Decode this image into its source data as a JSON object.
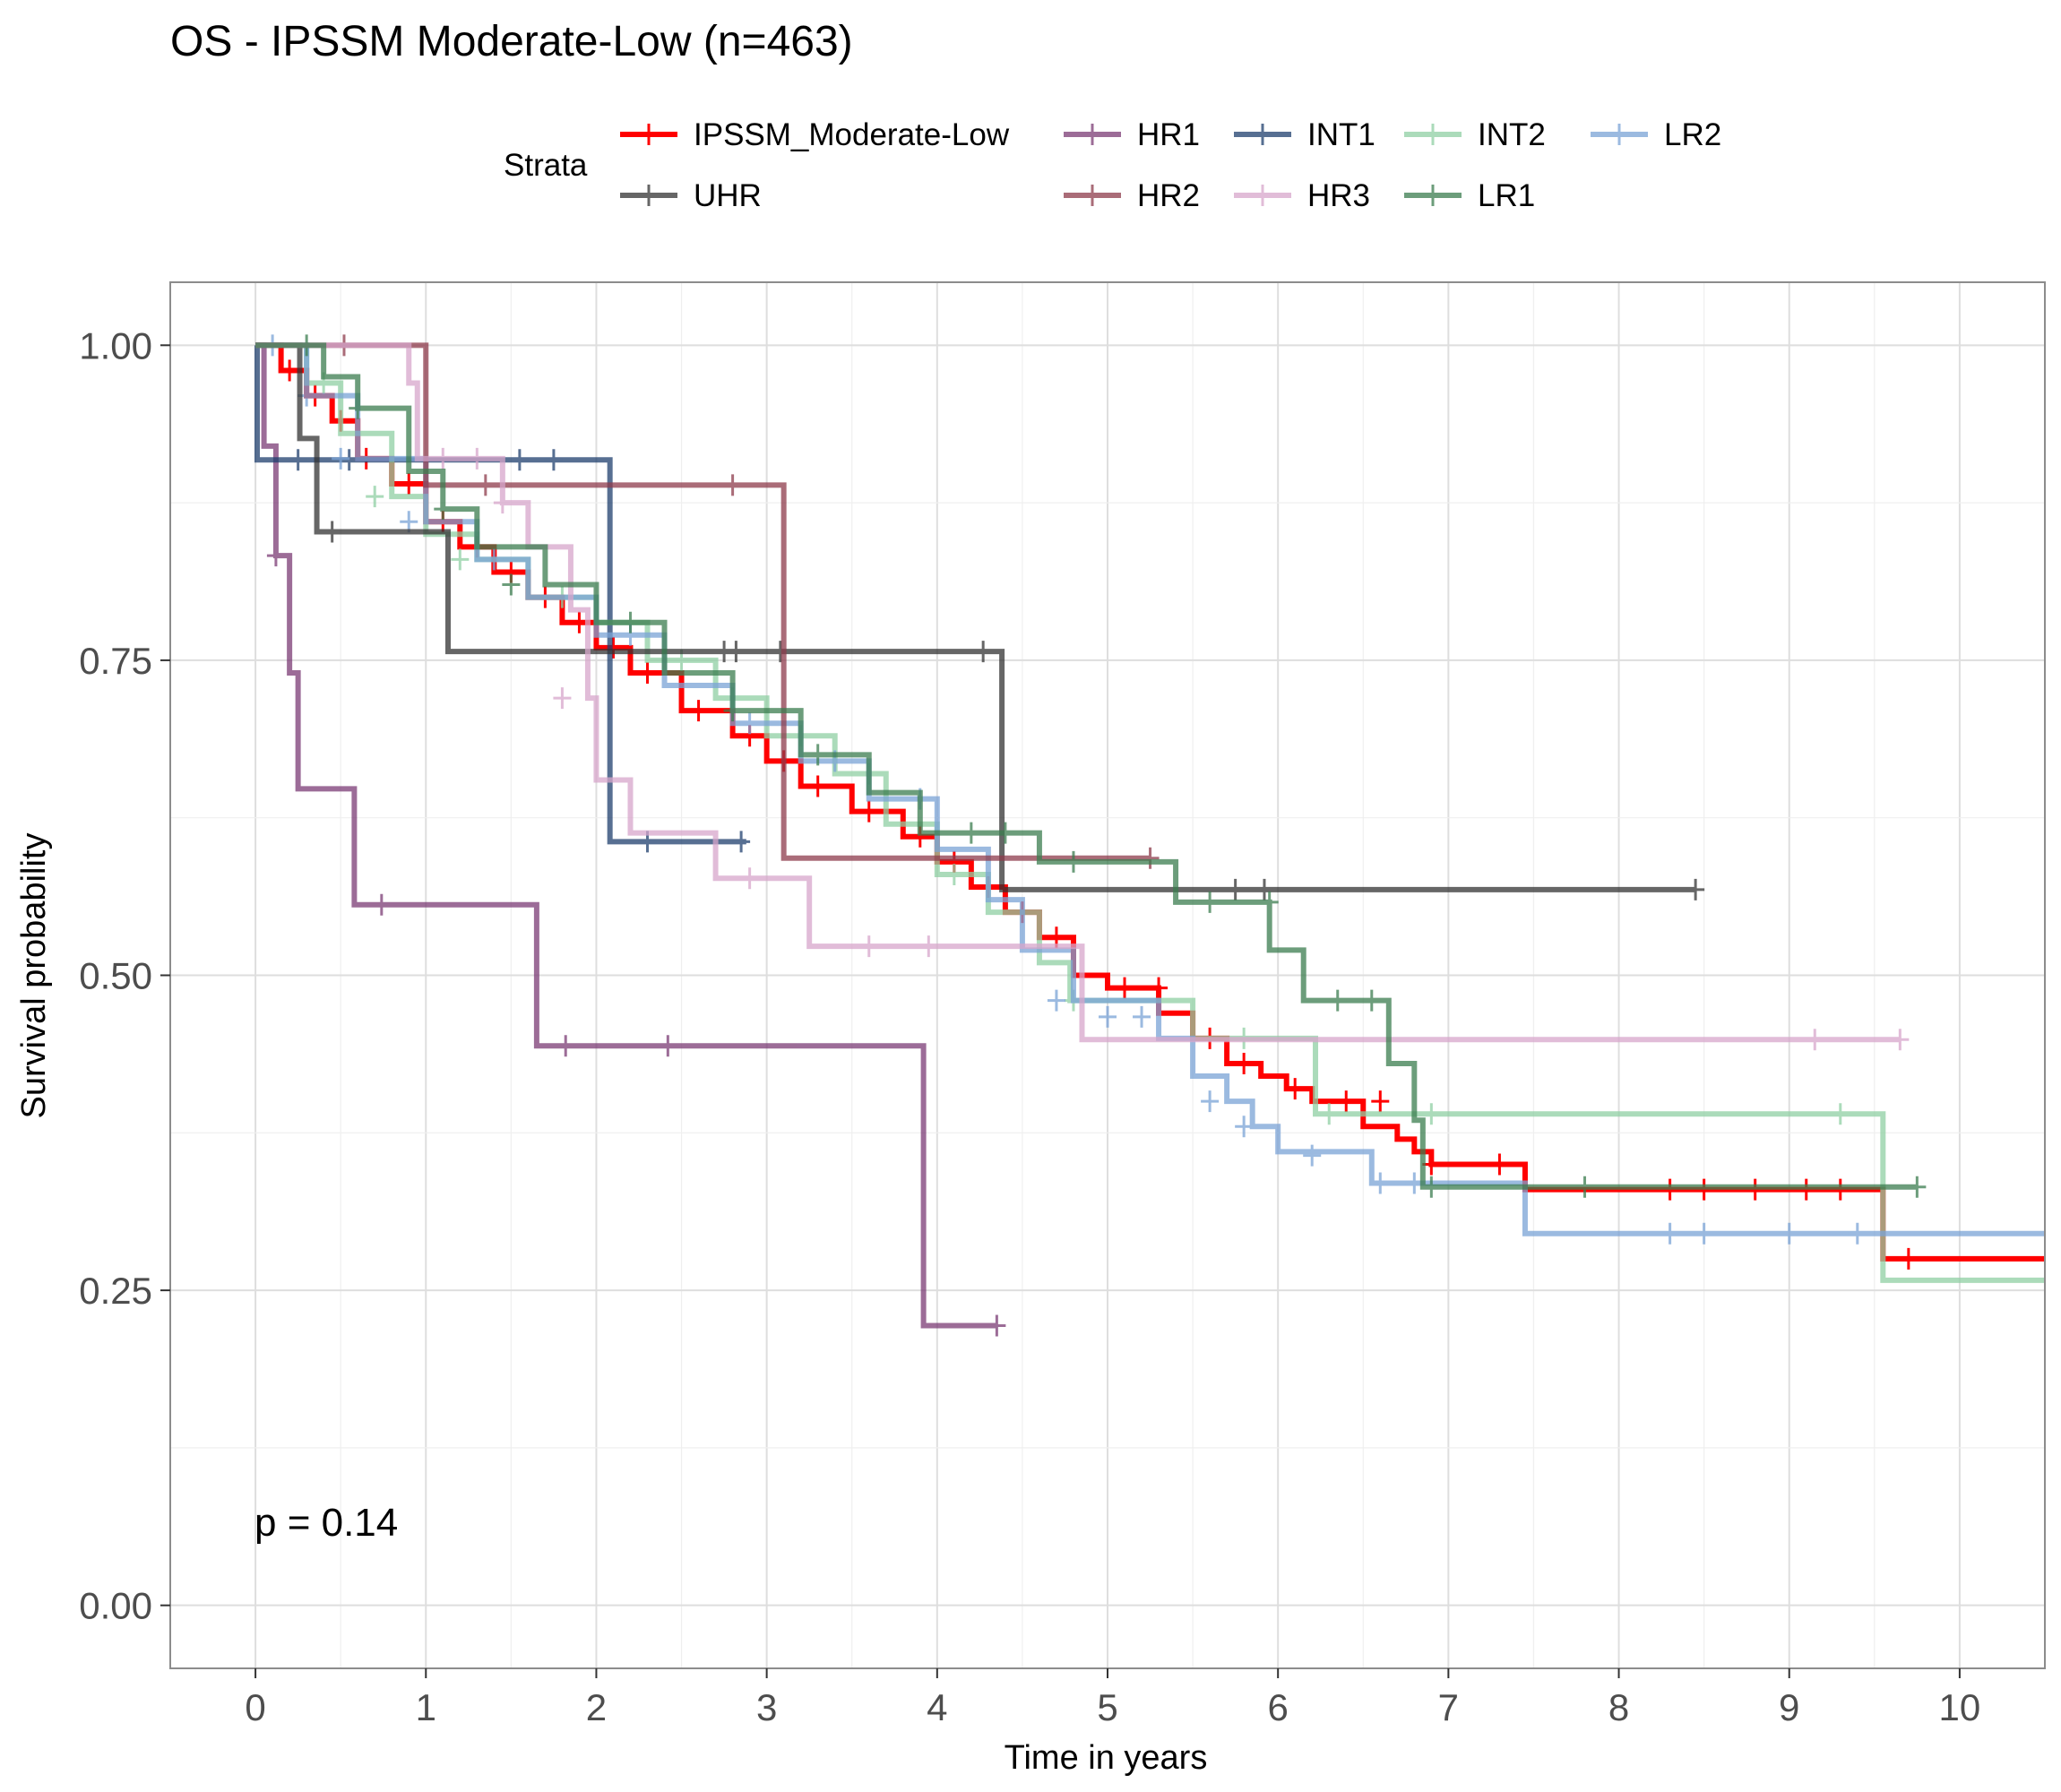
{
  "chart_data": {
    "type": "line",
    "title": "OS - IPSSM Moderate-Low (n=463)",
    "xlabel": "Time in years",
    "ylabel": "Survival probability",
    "xlim": [
      -0.5,
      10.5
    ],
    "ylim": [
      -0.05,
      1.05
    ],
    "x_ticks": [
      "0",
      "1",
      "2",
      "3",
      "4",
      "5",
      "6",
      "7",
      "8",
      "9",
      "10"
    ],
    "y_ticks": [
      "0.00",
      "0.25",
      "0.50",
      "0.75",
      "1.00"
    ],
    "grid": true,
    "legend_title": "Strata",
    "legend_position": "top",
    "annotation": "p = 0.14",
    "series": [
      {
        "name": "IPSSM_Moderate-Low",
        "color": "#ff0000",
        "opacity": 1.0,
        "x": [
          0,
          0.15,
          0.3,
          0.45,
          0.6,
          0.8,
          1.0,
          1.2,
          1.4,
          1.6,
          1.8,
          2.0,
          2.2,
          2.5,
          2.8,
          3.0,
          3.2,
          3.5,
          3.8,
          4.0,
          4.2,
          4.4,
          4.6,
          4.8,
          5.0,
          5.3,
          5.5,
          5.7,
          5.9,
          6.05,
          6.2,
          6.5,
          6.7,
          6.8,
          6.9,
          7.45,
          9.55,
          10.5
        ],
        "y": [
          1.0,
          0.98,
          0.96,
          0.94,
          0.91,
          0.89,
          0.86,
          0.84,
          0.82,
          0.8,
          0.78,
          0.76,
          0.74,
          0.71,
          0.69,
          0.67,
          0.65,
          0.63,
          0.61,
          0.59,
          0.57,
          0.55,
          0.53,
          0.5,
          0.49,
          0.47,
          0.45,
          0.43,
          0.42,
          0.41,
          0.4,
          0.38,
          0.37,
          0.36,
          0.35,
          0.33,
          0.275,
          0.275
        ],
        "censor_x": [
          0.2,
          0.35,
          0.5,
          0.65,
          0.9,
          1.1,
          1.3,
          1.5,
          1.7,
          1.9,
          2.1,
          2.3,
          2.6,
          2.9,
          3.1,
          3.3,
          3.6,
          3.9,
          4.1,
          4.3,
          4.5,
          4.7,
          5.1,
          5.3,
          5.6,
          5.8,
          6.1,
          6.4,
          6.6,
          6.9,
          7.3,
          8.3,
          8.5,
          8.8,
          9.1,
          9.3,
          9.7
        ],
        "censor_y": [
          0.98,
          0.96,
          0.94,
          0.91,
          0.89,
          0.86,
          0.84,
          0.82,
          0.8,
          0.78,
          0.76,
          0.74,
          0.71,
          0.69,
          0.67,
          0.65,
          0.63,
          0.61,
          0.59,
          0.57,
          0.55,
          0.53,
          0.49,
          0.49,
          0.45,
          0.43,
          0.41,
          0.4,
          0.4,
          0.35,
          0.35,
          0.33,
          0.33,
          0.33,
          0.33,
          0.33,
          0.275
        ]
      },
      {
        "name": "HR1",
        "color": "#7b3b75",
        "opacity": 0.75,
        "x": [
          0,
          0.05,
          0.12,
          0.2,
          0.25,
          0.58,
          1.65,
          3.92,
          4.35
        ],
        "y": [
          1.0,
          0.92,
          0.833,
          0.74,
          0.648,
          0.556,
          0.444,
          0.222,
          0.222
        ],
        "censor_x": [
          0.12,
          0.74,
          1.82,
          2.42,
          4.35
        ],
        "censor_y": [
          0.833,
          0.556,
          0.444,
          0.444,
          0.222
        ]
      },
      {
        "name": "INT1",
        "color": "#1f3f6e",
        "opacity": 0.75,
        "x": [
          0,
          0.01,
          2.08,
          2.88
        ],
        "y": [
          1.0,
          0.909,
          0.606,
          0.606
        ],
        "censor_x": [
          0.25,
          0.55,
          1.55,
          1.75,
          2.3,
          2.85
        ],
        "censor_y": [
          0.909,
          0.909,
          0.909,
          0.909,
          0.606,
          0.606
        ]
      },
      {
        "name": "INT2",
        "color": "#8fcfa3",
        "opacity": 0.75,
        "x": [
          0,
          0.3,
          0.5,
          0.8,
          1.0,
          1.3,
          1.6,
          2.0,
          2.3,
          2.7,
          3.0,
          3.4,
          3.7,
          4.0,
          4.3,
          4.6,
          4.78,
          5.5,
          6.22,
          9.55,
          10.5
        ],
        "y": [
          1.0,
          0.97,
          0.93,
          0.88,
          0.85,
          0.83,
          0.8,
          0.78,
          0.75,
          0.72,
          0.69,
          0.66,
          0.62,
          0.58,
          0.55,
          0.51,
          0.48,
          0.45,
          0.39,
          0.258,
          0.258
        ],
        "censor_x": [
          0.4,
          0.7,
          1.2,
          1.8,
          2.5,
          2.8,
          3.2,
          3.6,
          4.1,
          4.8,
          5.8,
          6.3,
          6.9,
          9.3
        ],
        "censor_y": [
          0.97,
          0.88,
          0.83,
          0.8,
          0.75,
          0.72,
          0.69,
          0.66,
          0.58,
          0.48,
          0.45,
          0.39,
          0.39,
          0.39
        ]
      },
      {
        "name": "LR2",
        "color": "#7aa3d6",
        "opacity": 0.75,
        "x": [
          0,
          0.3,
          0.6,
          1.0,
          1.3,
          1.6,
          2.0,
          2.4,
          2.8,
          3.2,
          3.6,
          4.0,
          4.3,
          4.5,
          4.8,
          5.3,
          5.5,
          5.7,
          5.85,
          6.0,
          6.55,
          7.45,
          10.5
        ],
        "y": [
          1.0,
          0.96,
          0.91,
          0.86,
          0.83,
          0.8,
          0.77,
          0.73,
          0.7,
          0.67,
          0.64,
          0.6,
          0.56,
          0.52,
          0.48,
          0.45,
          0.42,
          0.4,
          0.38,
          0.36,
          0.335,
          0.295,
          0.295
        ],
        "censor_x": [
          0.1,
          0.3,
          0.5,
          0.9,
          1.4,
          2.2,
          2.9,
          3.4,
          3.9,
          4.7,
          5.0,
          5.2,
          5.6,
          5.8,
          6.2,
          6.6,
          6.8,
          8.3,
          8.5,
          9.0,
          9.4
        ],
        "censor_y": [
          1.0,
          0.96,
          0.91,
          0.86,
          0.83,
          0.77,
          0.7,
          0.67,
          0.64,
          0.48,
          0.467,
          0.467,
          0.4,
          0.38,
          0.357,
          0.335,
          0.335,
          0.295,
          0.295,
          0.295,
          0.295
        ]
      },
      {
        "name": "UHR",
        "color": "#333333",
        "opacity": 0.75,
        "x": [
          0,
          0.26,
          0.36,
          1.13,
          4.38,
          8.45
        ],
        "y": [
          1.0,
          0.926,
          0.852,
          0.757,
          0.568,
          0.568
        ],
        "censor_x": [
          0.45,
          2.75,
          2.82,
          3.08,
          4.27,
          5.75,
          5.92,
          8.45
        ],
        "censor_y": [
          0.852,
          0.757,
          0.757,
          0.757,
          0.757,
          0.568,
          0.568,
          0.568
        ]
      },
      {
        "name": "HR2",
        "color": "#8e3b4c",
        "opacity": 0.75,
        "x": [
          0,
          1.0,
          3.1,
          5.25
        ],
        "y": [
          1.0,
          0.889,
          0.593,
          0.593
        ],
        "censor_x": [
          0.52,
          1.35,
          2.8,
          5.25
        ],
        "censor_y": [
          1.0,
          0.889,
          0.889,
          0.593
        ]
      },
      {
        "name": "HR3",
        "color": "#d7a6cb",
        "opacity": 0.75,
        "x": [
          0,
          0.9,
          0.95,
          1.45,
          1.6,
          1.85,
          1.95,
          2.0,
          2.2,
          2.7,
          3.25,
          4.85,
          9.65
        ],
        "y": [
          1.0,
          0.97,
          0.91,
          0.875,
          0.84,
          0.79,
          0.72,
          0.655,
          0.613,
          0.577,
          0.523,
          0.449,
          0.449
        ],
        "censor_x": [
          1.1,
          1.3,
          1.45,
          1.8,
          2.9,
          3.6,
          3.95,
          9.15,
          9.65
        ],
        "censor_y": [
          0.91,
          0.91,
          0.875,
          0.72,
          0.577,
          0.523,
          0.523,
          0.449,
          0.449
        ]
      },
      {
        "name": "LR1",
        "color": "#3b7d4f",
        "opacity": 0.75,
        "x": [
          0,
          0.4,
          0.6,
          0.9,
          1.1,
          1.3,
          1.7,
          2.0,
          2.4,
          2.8,
          3.2,
          3.6,
          3.9,
          4.6,
          5.4,
          5.95,
          6.15,
          6.65,
          6.8,
          6.85,
          9.75
        ],
        "y": [
          1.0,
          0.975,
          0.95,
          0.9,
          0.87,
          0.84,
          0.81,
          0.78,
          0.74,
          0.71,
          0.675,
          0.645,
          0.613,
          0.59,
          0.558,
          0.52,
          0.48,
          0.43,
          0.385,
          0.332,
          0.332
        ],
        "censor_x": [
          0.3,
          0.6,
          1.1,
          1.5,
          2.2,
          2.8,
          3.3,
          4.2,
          4.4,
          4.8,
          5.6,
          5.95,
          6.35,
          6.55,
          6.9,
          7.8,
          9.75
        ],
        "censor_y": [
          1.0,
          0.95,
          0.87,
          0.81,
          0.78,
          0.71,
          0.675,
          0.613,
          0.613,
          0.59,
          0.558,
          0.558,
          0.48,
          0.48,
          0.332,
          0.332,
          0.332
        ]
      }
    ],
    "legend_rows": [
      [
        "IPSSM_Moderate-Low",
        "HR1",
        "INT1",
        "INT2",
        "LR2"
      ],
      [
        "UHR",
        "HR2",
        "HR3",
        "LR1"
      ]
    ]
  }
}
